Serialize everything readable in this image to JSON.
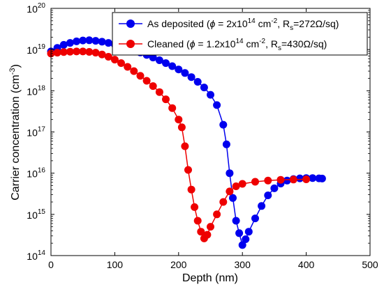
{
  "chart_data": {
    "type": "scatter",
    "xlabel": "Depth (nm)",
    "ylabel": "Carrier concentration (cm",
    "ylabel_exp": "-3",
    "ylabel_close": ")",
    "xlim": [
      0,
      500
    ],
    "ylim_log10": [
      14,
      20
    ],
    "y_scale": "log",
    "xticks": [
      "0",
      "100",
      "200",
      "300",
      "400",
      "500"
    ],
    "yticks": [
      {
        "base": "10",
        "exp": "14"
      },
      {
        "base": "10",
        "exp": "15"
      },
      {
        "base": "10",
        "exp": "16"
      },
      {
        "base": "10",
        "exp": "17"
      },
      {
        "base": "10",
        "exp": "18"
      },
      {
        "base": "10",
        "exp": "19"
      },
      {
        "base": "10",
        "exp": "20"
      }
    ],
    "legend_position": "top-right",
    "series": [
      {
        "color": "#0000ee",
        "legend": {
          "p1": "As deposited (",
          "phi": "ϕ",
          "p2": " = 2x10",
          "e1": "14",
          "p3": " cm",
          "e2": "-2",
          "p4": ", R",
          "sub": "s",
          "p5": "=272Ω/sq)"
        },
        "x": [
          0,
          10,
          20,
          30,
          40,
          50,
          60,
          70,
          80,
          90,
          100,
          110,
          120,
          130,
          140,
          150,
          160,
          170,
          180,
          190,
          200,
          210,
          220,
          230,
          240,
          250,
          260,
          270,
          275,
          280,
          285,
          290,
          295,
          300,
          305,
          310,
          320,
          330,
          340,
          350,
          360,
          370,
          380,
          390,
          400,
          410,
          420,
          425
        ],
        "y": [
          9e+18,
          1.1e+19,
          1.3e+19,
          1.45e+19,
          1.58e+19,
          1.66e+19,
          1.68e+19,
          1.63e+19,
          1.55e+19,
          1.45e+19,
          1.33e+19,
          1.2e+19,
          1.08e+19,
          9.6e+18,
          8.5e+18,
          7.4e+18,
          6.4e+18,
          5.5e+18,
          4.7e+18,
          3.95e+18,
          3.3e+18,
          2.7e+18,
          2.15e+18,
          1.65e+18,
          1.2e+18,
          8e+17,
          4.5e+17,
          1.5e+17,
          5e+16,
          1e+16,
          2500000000000000.0,
          700000000000000.0,
          350000000000000.0,
          180000000000000.0,
          250000000000000.0,
          380000000000000.0,
          800000000000000.0,
          1600000000000000.0,
          2900000000000000.0,
          4300000000000000.0,
          5600000000000000.0,
          6600000000000000.0,
          7200000000000000.0,
          7500000000000000.0,
          7600000000000000.0,
          7600000000000000.0,
          7500000000000000.0,
          7400000000000000.0
        ]
      },
      {
        "color": "#ee0000",
        "legend": {
          "p1": "Cleaned (",
          "phi": "ϕ",
          "p2": " = 1.2x10",
          "e1": "14",
          "p3": " cm",
          "e2": "-2",
          "p4": ", R",
          "sub": "s",
          "p5": "=430Ω/sq)"
        },
        "x": [
          0,
          10,
          20,
          30,
          40,
          50,
          60,
          70,
          80,
          90,
          100,
          110,
          120,
          130,
          140,
          150,
          160,
          170,
          180,
          190,
          200,
          205,
          210,
          215,
          220,
          225,
          230,
          235,
          240,
          245,
          250,
          260,
          270,
          280,
          290,
          300,
          320,
          340,
          360,
          380,
          400
        ],
        "y": [
          8e+18,
          8.4e+18,
          8.7e+18,
          8.9e+18,
          9e+18,
          9e+18,
          8.8e+18,
          8.4e+18,
          7.6e+18,
          6.7e+18,
          5.7e+18,
          4.7e+18,
          3.8e+18,
          3e+18,
          2.3e+18,
          1.75e+18,
          1.3e+18,
          9.3e+17,
          6.2e+17,
          3.8e+17,
          2e+17,
          1.3e+17,
          4.5e+16,
          1.2e+16,
          4000000000000000.0,
          1500000000000000.0,
          700000000000000.0,
          380000000000000.0,
          260000000000000.0,
          320000000000000.0,
          500000000000000.0,
          1000000000000000.0,
          2000000000000000.0,
          3600000000000000.0,
          4800000000000000.0,
          5500000000000000.0,
          6200000000000000.0,
          6600000000000000.0,
          6900000000000000.0,
          7000000000000000.0,
          7100000000000000.0
        ]
      }
    ]
  }
}
